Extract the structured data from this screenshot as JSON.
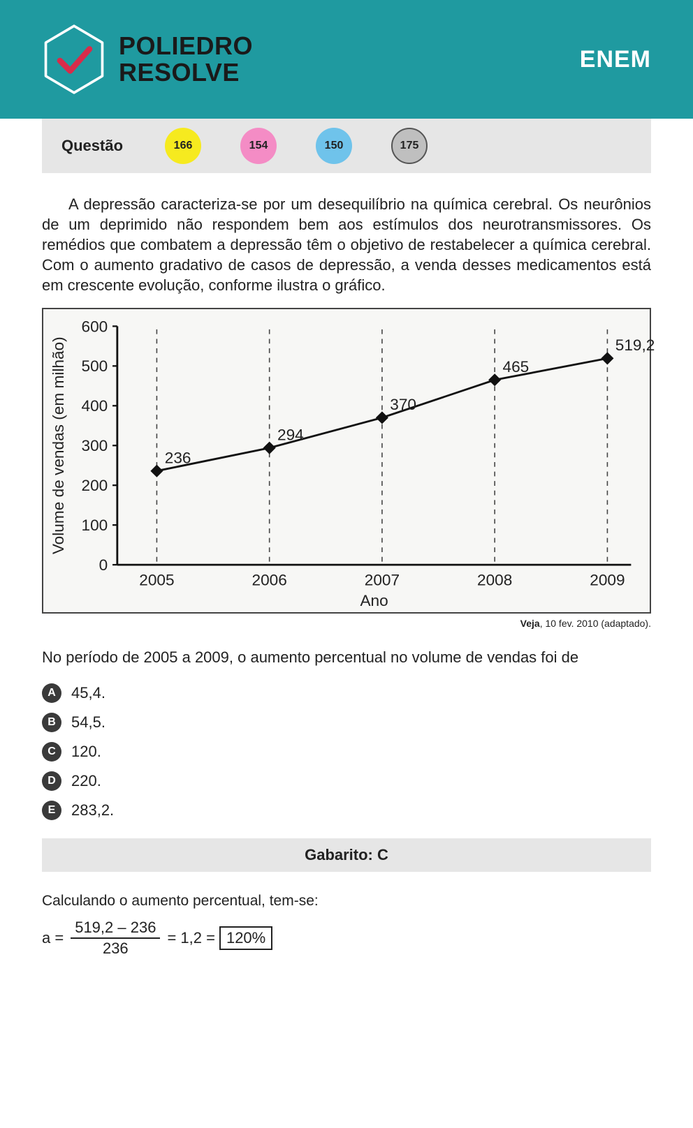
{
  "header": {
    "logo_line1": "POLIEDRO",
    "logo_line2": "RESOLVE",
    "exam_label": "ENEM",
    "bg_color": "#1f9aa0",
    "check_color": "#d92b4a",
    "hex_stroke": "#ffffff"
  },
  "question_bar": {
    "label": "Questão",
    "badges": [
      {
        "value": "166",
        "color": "#f6ea1f"
      },
      {
        "value": "154",
        "color": "#f48cc5"
      },
      {
        "value": "150",
        "color": "#6fc3eb"
      },
      {
        "value": "175",
        "color": "#bfbfbf",
        "outlined": true
      }
    ],
    "bg_color": "#e6e6e6"
  },
  "passage": "A depressão caracteriza-se por um desequilíbrio na química cerebral. Os neurônios de um deprimido não respondem bem aos estímulos dos neurotransmissores. Os remédios que combatem a depressão têm o objetivo de restabelecer a química cerebral. Com o aumento gradativo de casos de depressão, a venda desses medicamentos está em crescente evolução, conforme ilustra o gráfico.",
  "chart": {
    "type": "line",
    "xlabel": "Ano",
    "ylabel": "Volume de vendas (em milhão)",
    "categories": [
      "2005",
      "2006",
      "2007",
      "2008",
      "2009"
    ],
    "values": [
      236,
      294,
      370,
      465,
      519.2
    ],
    "value_labels": [
      "236",
      "294",
      "370",
      "465",
      "519,2"
    ],
    "ylim": [
      0,
      600
    ],
    "ytick_step": 100,
    "yticks": [
      "0",
      "100",
      "200",
      "300",
      "400",
      "500",
      "600"
    ],
    "line_color": "#111111",
    "marker": "diamond",
    "marker_size": 8,
    "grid_dash": "6,6",
    "grid_color": "#444444",
    "axis_color": "#111111",
    "bg_color": "#f7f7f5",
    "label_fontsize": 20,
    "tick_fontsize": 20,
    "value_fontsize": 20
  },
  "caption": {
    "source_bold": "Veja",
    "source_rest": ", 10 fev. 2010 (adaptado)."
  },
  "prompt": "No período de 2005 a 2009, o aumento percentual no volume de vendas foi de",
  "options": [
    {
      "letter": "A",
      "text": "45,4."
    },
    {
      "letter": "B",
      "text": "54,5."
    },
    {
      "letter": "C",
      "text": "120."
    },
    {
      "letter": "D",
      "text": "220."
    },
    {
      "letter": "E",
      "text": "283,2."
    }
  ],
  "gabarito": "Gabarito: C",
  "solution_intro": "Calculando o aumento percentual, tem-se:",
  "formula": {
    "lhs": "a =",
    "numerator": "519,2 – 236",
    "denominator": "236",
    "mid": "= 1,2 =",
    "boxed_result": "120%"
  }
}
